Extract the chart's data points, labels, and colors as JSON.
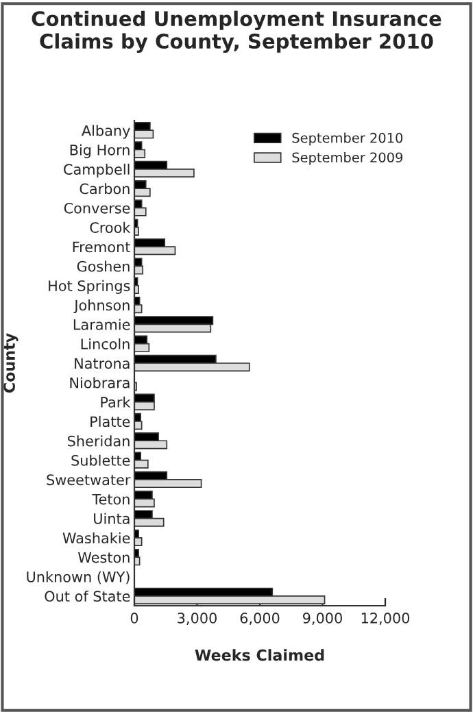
{
  "chart_data": {
    "type": "bar",
    "orientation": "horizontal",
    "title": "Continued Unemployment Insurance Claims by County, September 2010",
    "xlabel": "Weeks Claimed",
    "ylabel": "County",
    "categories": [
      "Albany",
      "Big Horn",
      "Campbell",
      "Carbon",
      "Converse",
      "Crook",
      "Fremont",
      "Goshen",
      "Hot Springs",
      "Johnson",
      "Laramie",
      "Lincoln",
      "Natrona",
      "Niobrara",
      "Park",
      "Platte",
      "Sheridan",
      "Sublette",
      "Sweetwater",
      "Teton",
      "Uinta",
      "Washakie",
      "Weston",
      "Unknown (WY)",
      "Out of State"
    ],
    "series": [
      {
        "name": "September 2010",
        "color": "#000000",
        "values": [
          750,
          350,
          1550,
          550,
          350,
          150,
          1450,
          350,
          150,
          250,
          3750,
          600,
          3900,
          null,
          950,
          300,
          1150,
          300,
          1550,
          850,
          850,
          200,
          200,
          null,
          6600
        ]
      },
      {
        "name": "September 2009",
        "color": "#dddddd",
        "values": [
          900,
          500,
          2850,
          750,
          550,
          200,
          1950,
          400,
          200,
          350,
          3650,
          700,
          5500,
          100,
          950,
          350,
          1550,
          650,
          3200,
          950,
          1400,
          350,
          250,
          null,
          9100
        ]
      }
    ],
    "xlim": [
      0,
      12000
    ],
    "xticks": [
      {
        "value": 0,
        "label": "0"
      },
      {
        "value": 3000,
        "label": "3,000"
      },
      {
        "value": 6000,
        "label": "6,000"
      },
      {
        "value": 9000,
        "label": "9,000"
      },
      {
        "value": 12000,
        "label": "12,000"
      }
    ],
    "grid": false,
    "legend": "top right"
  }
}
